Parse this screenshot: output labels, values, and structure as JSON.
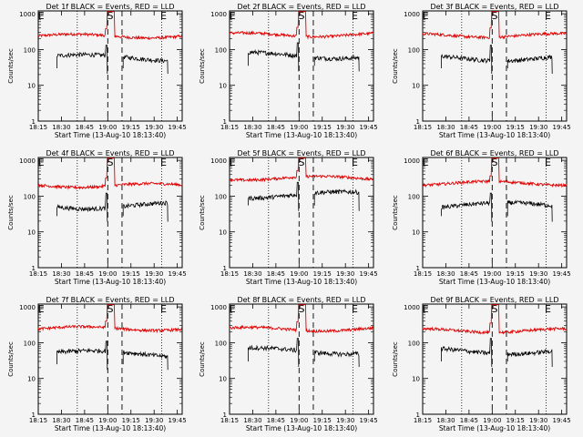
{
  "common": {
    "ylabel": "Counts/sec",
    "xlabel": "Start Time (13-Aug-10 18:13:40)",
    "ytick_labels": [
      "1",
      "10",
      "100",
      "1000"
    ],
    "ylim": [
      1,
      1200
    ],
    "yscale": "log",
    "series_colors": {
      "events": "#000000",
      "lld": "#e00000"
    },
    "marker_labels": [
      "E",
      "S",
      "E"
    ],
    "grid": false
  },
  "chart_data": [
    {
      "type": "line",
      "title": "Det 1f BLACK = Events, RED = LLD",
      "x_tick_labels": [
        "18:15",
        "18:30",
        "18:45",
        "19:00",
        "19:15",
        "19:30",
        "19:45"
      ],
      "events_level": 60,
      "lld_level": 240,
      "series": [
        {
          "name": "Events"
        },
        {
          "name": "LLD"
        }
      ]
    },
    {
      "type": "line",
      "title": "Det 2f BLACK = Events, RED = LLD",
      "x_tick_labels": [
        "18:15",
        "18:30",
        "18:45",
        "19:00",
        "19:15",
        "19:30",
        "19:45"
      ],
      "events_level": 70,
      "lld_level": 260,
      "series": [
        {
          "name": "Events"
        },
        {
          "name": "LLD"
        }
      ]
    },
    {
      "type": "line",
      "title": "Det 3f BLACK = Events, RED = LLD",
      "x_tick_labels": [
        "18:15",
        "18:30",
        "18:45",
        "19:00",
        "19:15",
        "19:30",
        "19:45"
      ],
      "events_level": 60,
      "lld_level": 250,
      "series": [
        {
          "name": "Events"
        },
        {
          "name": "LLD"
        }
      ]
    },
    {
      "type": "line",
      "title": "Det 4f BLACK = Events, RED = LLD",
      "x_tick_labels": [
        "18:15",
        "18:30",
        "18:45",
        "19:00",
        "19:15",
        "19:30",
        "19:45"
      ],
      "events_level": 55,
      "lld_level": 200,
      "series": [
        {
          "name": "Events"
        },
        {
          "name": "LLD"
        }
      ]
    },
    {
      "type": "line",
      "title": "Det 5f BLACK = Events, RED = LLD",
      "x_tick_labels": [
        "18:15",
        "18:30",
        "18:45",
        "19:00",
        "19:15",
        "19:30",
        "19:45"
      ],
      "events_level": 110,
      "lld_level": 320,
      "series": [
        {
          "name": "Events"
        },
        {
          "name": "LLD"
        }
      ]
    },
    {
      "type": "line",
      "title": "Det 6f BLACK = Events, RED = LLD",
      "x_tick_labels": [
        "18:15",
        "18:30",
        "18:45",
        "19:00",
        "19:15",
        "19:30",
        "19:45"
      ],
      "events_level": 55,
      "lld_level": 230,
      "series": [
        {
          "name": "Events"
        },
        {
          "name": "LLD"
        }
      ]
    },
    {
      "type": "line",
      "title": "Det 7f BLACK = Events, RED = LLD",
      "x_tick_labels": [
        "18:15",
        "18:30",
        "18:45",
        "19:00",
        "19:15",
        "19:30",
        "19:45"
      ],
      "events_level": 50,
      "lld_level": 250,
      "series": [
        {
          "name": "Events"
        },
        {
          "name": "LLD"
        }
      ]
    },
    {
      "type": "line",
      "title": "Det 8f BLACK = Events, RED = LLD",
      "x_tick_labels": [
        "18:15",
        "18:30",
        "18:45",
        "19:00",
        "19:15",
        "19:30",
        "19:45"
      ],
      "events_level": 60,
      "lld_level": 240,
      "series": [
        {
          "name": "Events"
        },
        {
          "name": "LLD"
        }
      ]
    },
    {
      "type": "line",
      "title": "Det 9f BLACK = Events, RED = LLD",
      "x_tick_labels": [
        "18:15",
        "18:30",
        "18:45",
        "19:00",
        "19:15",
        "19:30",
        "19:45"
      ],
      "events_level": 60,
      "lld_level": 220,
      "series": [
        {
          "name": "Events"
        },
        {
          "name": "LLD"
        }
      ]
    }
  ]
}
